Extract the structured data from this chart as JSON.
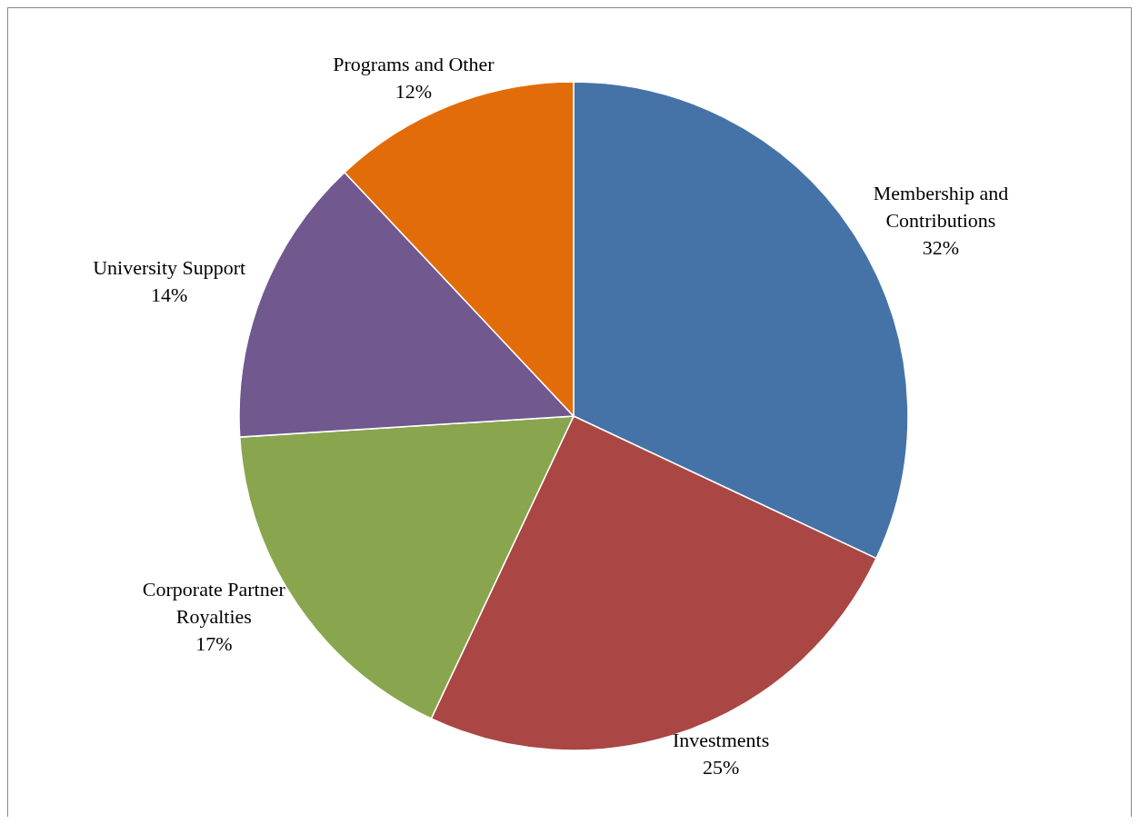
{
  "chart_data": {
    "type": "pie",
    "categories": [
      "Membership and Contributions",
      "Investments",
      "Corporate Partner Royalties",
      "University Support",
      "Programs and Other"
    ],
    "values": [
      32,
      25,
      17,
      14,
      12
    ],
    "colors": [
      "#4673a7",
      "#aa4744",
      "#89a54e",
      "#71588f",
      "#e36c0a"
    ],
    "value_labels": [
      "32%",
      "25%",
      "17%",
      "14%",
      "12%"
    ]
  }
}
